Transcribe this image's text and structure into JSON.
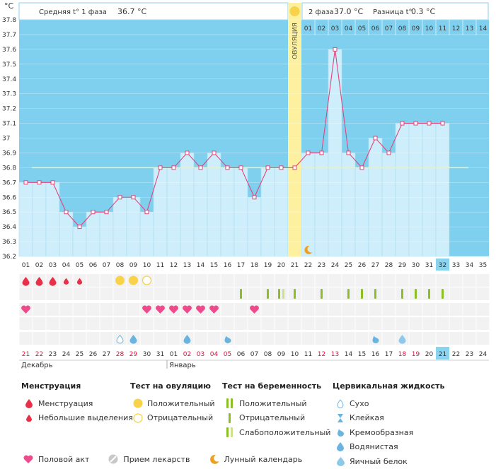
{
  "header": {
    "phase1_label": "Средняя t° 1 фаза",
    "phase1_value": "36.7 °C",
    "phase2_label": "2 фаза",
    "phase2_value": "37.0 °C",
    "diff_label": "Разница t°",
    "diff_value": "0.3 °C",
    "unit": "°C",
    "ovulation_label": "ОВУЛЯЦИЯ"
  },
  "chart_data": {
    "type": "line",
    "ylim": [
      36.2,
      37.8
    ],
    "y_ticks": [
      "36.2",
      "36.3",
      "36.4",
      "36.5",
      "36.6",
      "36.7",
      "36.8",
      "36.9",
      "37",
      "37.1",
      "37.2",
      "37.3",
      "37.4",
      "37.5",
      "37.6",
      "37.7",
      "37.8"
    ],
    "cycle_days": [
      "01",
      "02",
      "03",
      "04",
      "05",
      "06",
      "07",
      "08",
      "09",
      "10",
      "11",
      "12",
      "13",
      "14",
      "15",
      "16",
      "17",
      "18",
      "19",
      "20",
      "21",
      "22",
      "23",
      "24",
      "25",
      "26",
      "27",
      "28",
      "29",
      "30",
      "31",
      "32",
      "33",
      "34",
      "35"
    ],
    "phase2_days": [
      "01",
      "02",
      "03",
      "04",
      "05",
      "06",
      "07",
      "08",
      "09",
      "10",
      "11",
      "12",
      "13",
      "14"
    ],
    "values": [
      36.7,
      36.7,
      36.7,
      36.5,
      36.4,
      36.5,
      36.5,
      36.6,
      36.6,
      36.5,
      36.8,
      36.8,
      36.9,
      36.8,
      36.9,
      36.8,
      36.8,
      36.6,
      36.8,
      36.8,
      36.8,
      36.9,
      36.9,
      37.6,
      36.9,
      36.8,
      37.0,
      36.9,
      37.1,
      37.1,
      37.1,
      37.1
    ],
    "coverline": 36.8,
    "ovulation_day": 21,
    "current_day": 32,
    "calendar_dates": [
      "21",
      "22",
      "23",
      "24",
      "25",
      "26",
      "27",
      "28",
      "29",
      "30",
      "31",
      "01",
      "02",
      "03",
      "04",
      "05",
      "06",
      "07",
      "08",
      "09",
      "10",
      "11",
      "12",
      "13",
      "14",
      "15",
      "16",
      "17",
      "18",
      "19",
      "20",
      "21",
      "22",
      "23",
      "24"
    ],
    "red_date_indices": [
      0,
      1,
      7,
      8,
      12,
      13,
      14,
      15,
      22,
      23,
      28,
      29
    ],
    "month_labels": [
      "Декабрь",
      "Январь"
    ],
    "month_start_indices": [
      0,
      11
    ],
    "menstruation": [
      {
        "day": 1,
        "kind": "full"
      },
      {
        "day": 2,
        "kind": "full"
      },
      {
        "day": 3,
        "kind": "full"
      },
      {
        "day": 4,
        "kind": "light"
      },
      {
        "day": 5,
        "kind": "light"
      }
    ],
    "ovulation_tests": [
      {
        "day": 8,
        "kind": "positive"
      },
      {
        "day": 9,
        "kind": "positive"
      },
      {
        "day": 10,
        "kind": "negative"
      }
    ],
    "pregnancy_tests": [
      {
        "day": 17,
        "kind": "negative"
      },
      {
        "day": 19,
        "kind": "negative"
      },
      {
        "day": 20,
        "kind": "weak"
      },
      {
        "day": 21,
        "kind": "negative"
      },
      {
        "day": 23,
        "kind": "negative"
      },
      {
        "day": 25,
        "kind": "negative"
      },
      {
        "day": 26,
        "kind": "negative"
      },
      {
        "day": 27,
        "kind": "negative"
      },
      {
        "day": 29,
        "kind": "negative"
      },
      {
        "day": 30,
        "kind": "negative"
      },
      {
        "day": 31,
        "kind": "negative"
      },
      {
        "day": 32,
        "kind": "negative"
      }
    ],
    "intercourse_days": [
      1,
      10,
      11,
      12,
      13,
      14,
      15,
      18
    ],
    "cervical_fluid": [
      {
        "day": 8,
        "kind": "dry"
      },
      {
        "day": 9,
        "kind": "watery"
      },
      {
        "day": 13,
        "kind": "watery"
      },
      {
        "day": 16,
        "kind": "creamy"
      },
      {
        "day": 27,
        "kind": "creamy"
      },
      {
        "day": 29,
        "kind": "eggwhite"
      }
    ],
    "moon_day": 22
  },
  "legend": {
    "menstruation": {
      "title": "Менструация",
      "items": [
        "Менструация",
        "Небольшие выделения"
      ]
    },
    "ovulation_test": {
      "title": "Тест на овуляцию",
      "items": [
        "Положительный",
        "Отрицательный"
      ]
    },
    "pregnancy_test": {
      "title": "Тест на беременность",
      "items": [
        "Положительный",
        "Отрицательный",
        "Слабоположительный"
      ]
    },
    "cervical_fluid": {
      "title": "Цервикальная жидкость",
      "items": [
        "Сухо",
        "Клейкая",
        "Кремообразная",
        "Водянистая",
        "Яичный белок"
      ]
    },
    "bottom": {
      "intercourse": "Половой акт",
      "medication": "Прием лекарств",
      "lunar": "Лунный календарь"
    }
  },
  "colors": {
    "sky": "#7fd0ef",
    "bar": "#cfeefb",
    "line": "#e0457b",
    "ovulation": "#fdf1a0",
    "sun": "#f8d34a",
    "current": "#8ad4f0",
    "test_green": "#8cbf26",
    "test_weak": "#cfe08a",
    "fluid": "#6ab4e0",
    "heart": "#ef4a8c",
    "blood": "#e8304a",
    "moon": "#f0a020"
  }
}
